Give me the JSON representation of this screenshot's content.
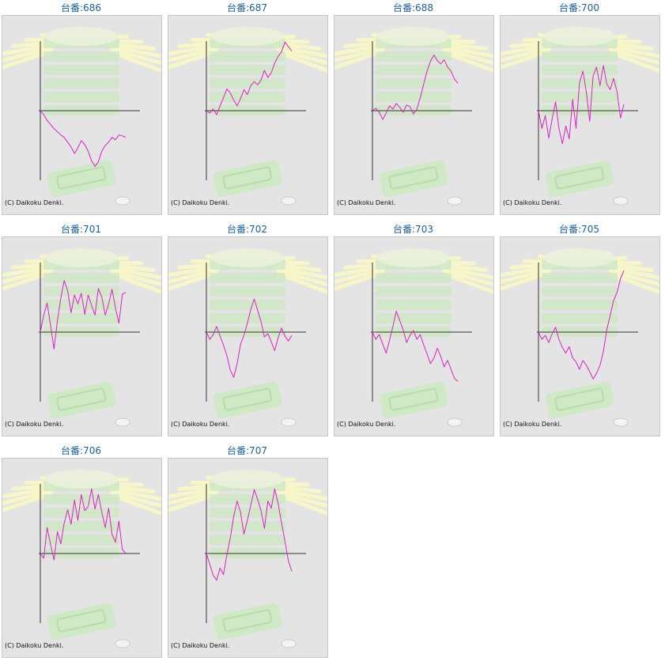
{
  "colors": {
    "line": "#e01fc8",
    "axis": "#333333",
    "panel_bg": "#e4e4e4",
    "title": "#1a5f9c",
    "decor_green": "#cfe8c5",
    "decor_rays": "#f6f6c8"
  },
  "copyright": "(C) Daikoku Denki.",
  "chart_data": [
    {
      "type": "line",
      "title": "台番:686",
      "x": [
        0,
        0.04,
        0.08,
        0.12,
        0.16,
        0.2,
        0.24,
        0.28,
        0.32,
        0.36,
        0.4,
        0.44,
        0.48,
        0.52,
        0.56,
        0.6,
        0.64,
        0.68,
        0.72,
        0.76,
        0.8,
        0.84,
        0.88,
        0.92,
        0.96,
        1.0
      ],
      "y": [
        0,
        -0.5,
        -1.2,
        -1.7,
        -2.2,
        -2.6,
        -3.0,
        -3.3,
        -3.9,
        -4.5,
        -5.3,
        -4.6,
        -3.7,
        -4.2,
        -5.0,
        -6.2,
        -6.9,
        -6.3,
        -5.0,
        -4.3,
        -3.9,
        -3.3,
        -3.6,
        -3.0,
        -3.1,
        -3.3
      ]
    },
    {
      "type": "line",
      "title": "台番:687",
      "x": [
        0,
        0.04,
        0.08,
        0.12,
        0.16,
        0.2,
        0.24,
        0.28,
        0.32,
        0.36,
        0.4,
        0.44,
        0.48,
        0.52,
        0.56,
        0.6,
        0.64,
        0.68,
        0.72,
        0.76,
        0.8,
        0.84,
        0.88,
        0.92,
        0.96,
        1.0
      ],
      "y": [
        0,
        -0.3,
        0.2,
        -0.5,
        0.6,
        1.6,
        2.7,
        2.2,
        1.3,
        0.6,
        1.5,
        2.6,
        2.0,
        3.1,
        3.6,
        3.2,
        3.8,
        5.0,
        4.1,
        4.7,
        5.9,
        6.7,
        7.3,
        8.5,
        7.9,
        7.4
      ]
    },
    {
      "type": "line",
      "title": "台番:688",
      "x": [
        0,
        0.04,
        0.08,
        0.12,
        0.16,
        0.2,
        0.24,
        0.28,
        0.32,
        0.36,
        0.4,
        0.44,
        0.48,
        0.52,
        0.56,
        0.6,
        0.64,
        0.68,
        0.72,
        0.76,
        0.8,
        0.84,
        0.88,
        0.92,
        0.96,
        1.0
      ],
      "y": [
        0,
        0.3,
        -0.2,
        -1.1,
        -0.3,
        0.6,
        0.2,
        0.9,
        0.4,
        -0.2,
        0.7,
        0.5,
        -0.4,
        0.2,
        1.6,
        3.3,
        4.9,
        6.1,
        6.9,
        6.2,
        5.8,
        6.3,
        5.4,
        4.9,
        3.9,
        3.4
      ]
    },
    {
      "type": "line",
      "title": "台番:700",
      "x": [
        0,
        0.04,
        0.08,
        0.12,
        0.16,
        0.2,
        0.24,
        0.28,
        0.32,
        0.36,
        0.4,
        0.44,
        0.48,
        0.52,
        0.56,
        0.6,
        0.64,
        0.68,
        0.72,
        0.76,
        0.8,
        0.84,
        0.88,
        0.92,
        0.96,
        1.0
      ],
      "y": [
        0,
        -2.2,
        -0.6,
        -3.4,
        -1.0,
        1.1,
        -2.2,
        -4.1,
        -1.9,
        -3.5,
        1.4,
        -2.2,
        3.4,
        4.9,
        2.3,
        -1.3,
        4.3,
        5.4,
        3.1,
        5.6,
        3.3,
        2.6,
        4.0,
        2.3,
        -0.9,
        0.8
      ]
    },
    {
      "type": "line",
      "title": "台番:701",
      "x": [
        0,
        0.04,
        0.08,
        0.12,
        0.16,
        0.2,
        0.24,
        0.28,
        0.32,
        0.36,
        0.4,
        0.44,
        0.48,
        0.52,
        0.56,
        0.6,
        0.64,
        0.68,
        0.72,
        0.76,
        0.8,
        0.84,
        0.88,
        0.92,
        0.96,
        1.0
      ],
      "y": [
        0,
        2.1,
        3.6,
        0.8,
        -2.1,
        1.4,
        4.2,
        6.4,
        5.1,
        2.4,
        4.6,
        3.5,
        4.8,
        2.2,
        4.6,
        3.3,
        2.1,
        5.4,
        4.3,
        2.1,
        3.5,
        5.3,
        3.0,
        1.1,
        4.7,
        4.9
      ]
    },
    {
      "type": "line",
      "title": "台番:702",
      "x": [
        0,
        0.04,
        0.08,
        0.12,
        0.16,
        0.2,
        0.24,
        0.28,
        0.32,
        0.36,
        0.4,
        0.44,
        0.48,
        0.52,
        0.56,
        0.6,
        0.64,
        0.68,
        0.72,
        0.76,
        0.8,
        0.84,
        0.88,
        0.92,
        0.96,
        1.0
      ],
      "y": [
        0,
        -0.9,
        -0.3,
        0.7,
        -0.5,
        -1.6,
        -2.9,
        -4.7,
        -5.6,
        -3.9,
        -1.5,
        -0.4,
        1.1,
        2.8,
        4.1,
        2.7,
        1.3,
        -0.6,
        -0.2,
        -1.2,
        -2.3,
        -0.7,
        0.5,
        -0.5,
        -1.1,
        -0.4
      ]
    },
    {
      "type": "line",
      "title": "台番:703",
      "x": [
        0,
        0.04,
        0.08,
        0.12,
        0.16,
        0.2,
        0.24,
        0.28,
        0.32,
        0.36,
        0.4,
        0.44,
        0.48,
        0.52,
        0.56,
        0.6,
        0.64,
        0.68,
        0.72,
        0.76,
        0.8,
        0.84,
        0.88,
        0.92,
        0.96,
        1.0
      ],
      "y": [
        0,
        -0.9,
        -0.3,
        -1.5,
        -2.6,
        -1.0,
        0.7,
        2.6,
        1.4,
        0.3,
        -1.3,
        -0.4,
        0.2,
        -0.9,
        -0.3,
        -1.6,
        -2.7,
        -3.9,
        -3.2,
        -2.0,
        -3.0,
        -4.3,
        -3.5,
        -4.6,
        -5.7,
        -6.1
      ]
    },
    {
      "type": "line",
      "title": "台番:705",
      "x": [
        0,
        0.04,
        0.08,
        0.12,
        0.16,
        0.2,
        0.24,
        0.28,
        0.32,
        0.36,
        0.4,
        0.44,
        0.48,
        0.52,
        0.56,
        0.6,
        0.64,
        0.68,
        0.72,
        0.76,
        0.8,
        0.84,
        0.88,
        0.92,
        0.96,
        1.0
      ],
      "y": [
        0,
        -0.9,
        -0.4,
        -1.3,
        -0.2,
        0.6,
        -0.9,
        -1.9,
        -2.6,
        -1.8,
        -3.2,
        -3.7,
        -4.6,
        -3.5,
        -4.1,
        -4.9,
        -5.8,
        -5.1,
        -4.1,
        -2.4,
        0.3,
        2.1,
        3.9,
        4.9,
        6.6,
        7.6
      ]
    },
    {
      "type": "line",
      "title": "台番:706",
      "x": [
        0,
        0.04,
        0.08,
        0.12,
        0.16,
        0.2,
        0.24,
        0.28,
        0.32,
        0.36,
        0.4,
        0.44,
        0.48,
        0.52,
        0.56,
        0.6,
        0.64,
        0.68,
        0.72,
        0.76,
        0.8,
        0.84,
        0.88,
        0.92,
        0.96,
        1.0
      ],
      "y": [
        0,
        -0.6,
        3.2,
        1.1,
        -0.8,
        2.7,
        1.2,
        3.8,
        5.4,
        3.6,
        6.6,
        4.1,
        7.3,
        5.3,
        5.8,
        8.0,
        5.5,
        7.3,
        5.1,
        3.2,
        5.6,
        2.4,
        1.4,
        4.0,
        0.5,
        0.0
      ]
    },
    {
      "type": "line",
      "title": "台番:707",
      "x": [
        0,
        0.04,
        0.08,
        0.12,
        0.16,
        0.2,
        0.24,
        0.28,
        0.32,
        0.36,
        0.4,
        0.44,
        0.48,
        0.52,
        0.56,
        0.6,
        0.64,
        0.68,
        0.72,
        0.76,
        0.8,
        0.84,
        0.88,
        0.92,
        0.96,
        1.0
      ],
      "y": [
        0,
        -1.3,
        -2.7,
        -3.3,
        -1.8,
        -2.6,
        -0.2,
        1.9,
        4.6,
        6.5,
        5.1,
        2.4,
        4.1,
        6.0,
        7.9,
        6.7,
        5.3,
        3.1,
        6.5,
        5.6,
        8.0,
        6.2,
        3.8,
        1.5,
        -0.9,
        -2.2
      ]
    }
  ]
}
